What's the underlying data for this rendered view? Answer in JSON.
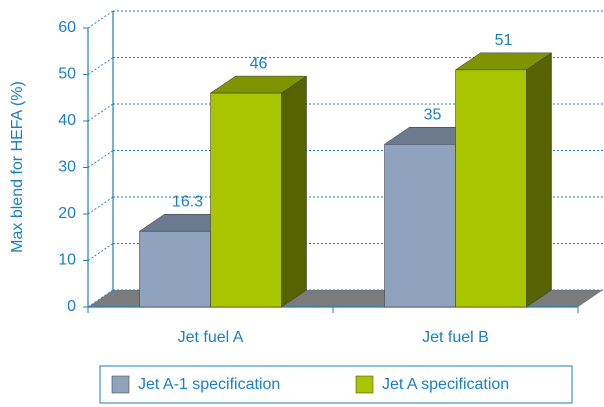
{
  "chart_data": {
    "type": "bar3d",
    "y_label": "Max blend for HEFA (%)",
    "categories": [
      "Jet fuel A",
      "Jet fuel B"
    ],
    "series": [
      {
        "name": "Jet A-1 specification",
        "color": "#8fa3bf",
        "values": [
          16.3,
          35
        ]
      },
      {
        "name": "Jet A specification",
        "color": "#a9c500",
        "values": [
          46,
          51
        ]
      }
    ],
    "ylim": [
      0,
      60
    ],
    "yticks": [
      0,
      10,
      20,
      30,
      40,
      50,
      60
    ],
    "grid": true,
    "legend": "bottom"
  }
}
